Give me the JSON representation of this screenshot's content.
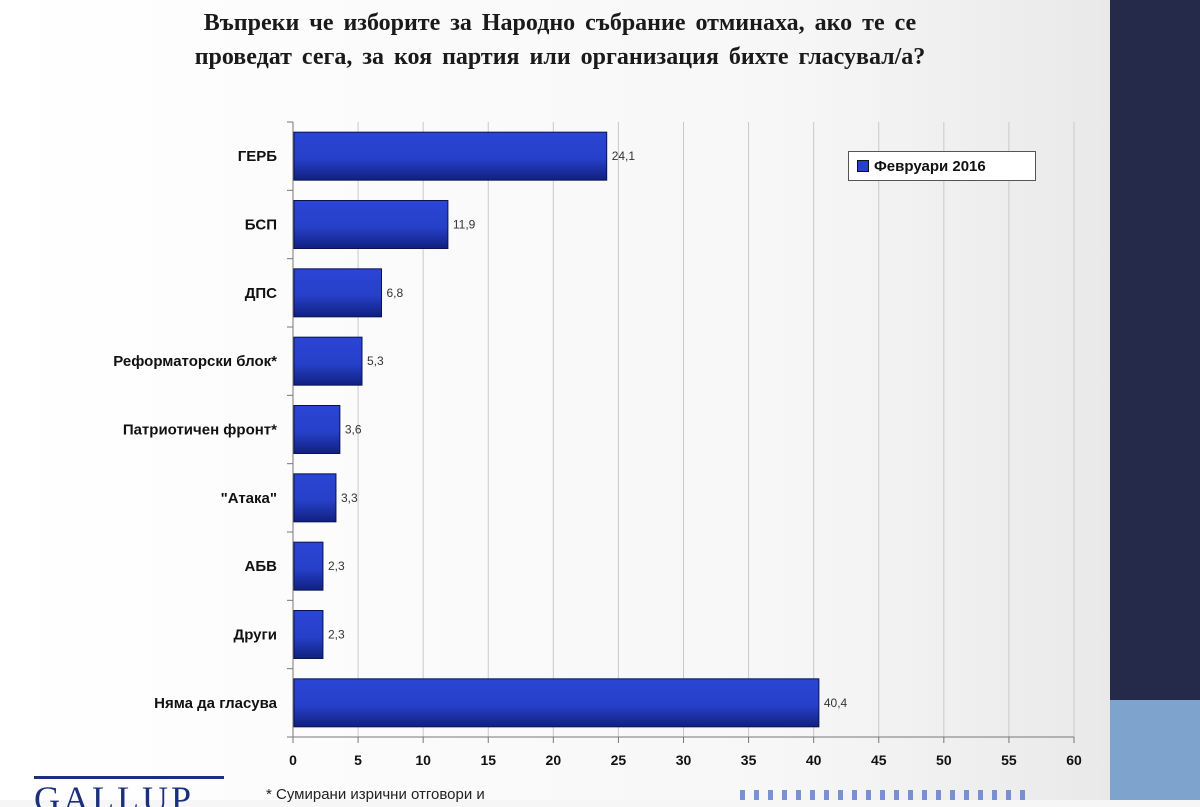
{
  "title_line1": "Въпреки че изборите за Народно събрание отминаха, ако те се",
  "title_line2": "проведат сега, за коя партия или организация бихте гласувал/а?",
  "legend_label": "Февруари 2016",
  "logo_text": "GALLUP",
  "footnote": "* Сумирани изрични отговори и",
  "colors": {
    "bar": "#2740c9",
    "bar_dark": "#0f1c7a",
    "grid": "#c9c9c9",
    "right_band": "#262a4a",
    "right_accent": "#7ea3cc",
    "logo": "#1c2f7a"
  },
  "chart_data": {
    "type": "bar",
    "orientation": "horizontal",
    "title": "Въпреки че изборите за Народно събрание отминаха, ако те се проведат сега, за коя партия или организация бихте гласувал/а?",
    "categories": [
      "ГЕРБ",
      "БСП",
      "ДПС",
      "Реформаторски блок*",
      "Патриотичен фронт*",
      "\"Атака\"",
      "АБВ",
      "Други",
      "Няма да гласува"
    ],
    "series": [
      {
        "name": "Февруари 2016",
        "values": [
          24.1,
          11.9,
          6.8,
          5.3,
          3.6,
          3.3,
          2.3,
          2.3,
          40.4
        ],
        "labels": [
          "24,1",
          "11,9",
          "6,8",
          "5,3",
          "3,6",
          "3,3",
          "2,3",
          "2,3",
          "40,4"
        ]
      }
    ],
    "xlim": [
      0,
      60
    ],
    "xticks": [
      0,
      5,
      10,
      15,
      20,
      25,
      30,
      35,
      40,
      45,
      50,
      55,
      60
    ],
    "xlabel": "",
    "ylabel": "",
    "grid": true,
    "legend_position": "top-right"
  }
}
